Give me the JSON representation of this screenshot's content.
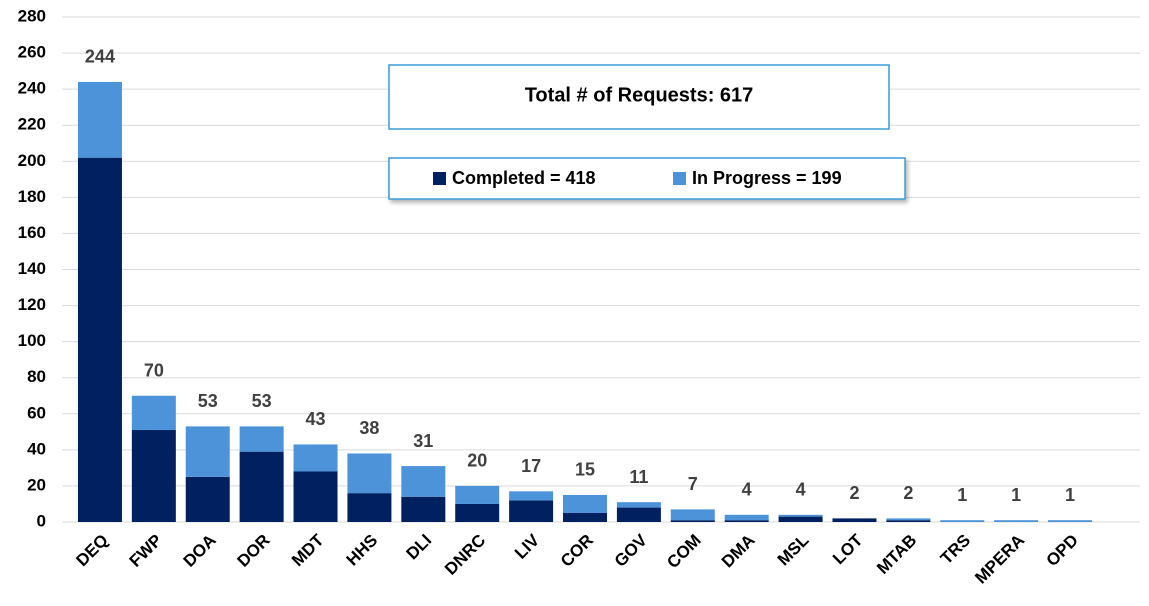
{
  "chart_data": {
    "type": "stacked_bar",
    "annotation": "Total # of Requests: 617",
    "categories": [
      "DEQ",
      "FWP",
      "DOA",
      "DOR",
      "MDT",
      "HHS",
      "DLI",
      "DNRC",
      "LIV",
      "COR",
      "GOV",
      "COM",
      "DMA",
      "MSL",
      "LOT",
      "MTAB",
      "TRS",
      "MPERA",
      "OPD"
    ],
    "series": [
      {
        "name": "Completed = 418",
        "color": "#002060",
        "values": [
          202,
          51,
          25,
          39,
          28,
          16,
          14,
          10,
          12,
          5,
          8,
          1,
          1,
          3,
          2,
          1,
          0,
          0,
          0
        ]
      },
      {
        "name": "In Progress = 199",
        "color": "#4d93d9",
        "values": [
          42,
          19,
          28,
          14,
          15,
          22,
          17,
          10,
          5,
          10,
          3,
          6,
          3,
          1,
          0,
          1,
          1,
          1,
          1
        ]
      }
    ],
    "totals": [
      244,
      70,
      53,
      53,
      43,
      38,
      31,
      20,
      17,
      15,
      11,
      7,
      4,
      4,
      2,
      2,
      1,
      1,
      1
    ],
    "ylim": [
      0,
      280
    ],
    "yticks": [
      0,
      20,
      40,
      60,
      80,
      100,
      120,
      140,
      160,
      180,
      200,
      220,
      240,
      260,
      280
    ],
    "grid": true
  }
}
